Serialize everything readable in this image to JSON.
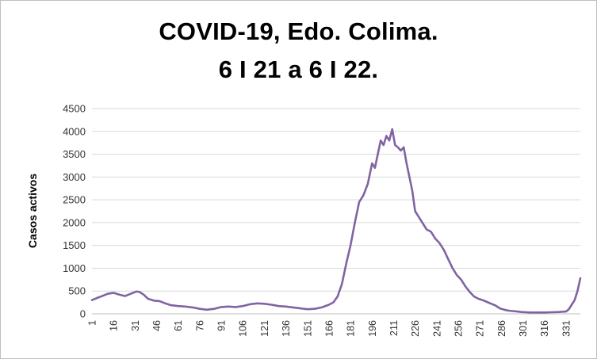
{
  "chart_data": {
    "type": "line",
    "title_line1": "COVID-19, Edo. Colima.",
    "title_line2": "6 I 21 a 6 I 22.",
    "ylabel": "Casos activos",
    "xlabel": "",
    "ylim": [
      0,
      4500
    ],
    "xlim": [
      1,
      341
    ],
    "yticks": [
      0,
      500,
      1000,
      1500,
      2000,
      2500,
      3000,
      3500,
      4000,
      4500
    ],
    "xticks": [
      1,
      16,
      31,
      46,
      61,
      76,
      91,
      106,
      121,
      136,
      151,
      166,
      181,
      196,
      211,
      226,
      241,
      256,
      271,
      286,
      301,
      316,
      331
    ],
    "grid": true,
    "legend": "none",
    "color": "#8064a2",
    "series": [
      {
        "x": [
          1,
          4,
          8,
          12,
          16,
          20,
          24,
          28,
          32,
          34,
          37,
          40,
          44,
          48,
          52,
          56,
          61,
          66,
          71,
          76,
          81,
          86,
          91,
          96,
          101,
          106,
          111,
          116,
          121,
          126,
          131,
          136,
          141,
          146,
          151,
          156,
          161,
          166,
          169,
          172,
          175,
          178,
          181,
          184,
          187,
          190,
          193,
          196,
          198,
          200,
          202,
          204,
          206,
          208,
          210,
          212,
          214,
          216,
          218,
          220,
          222,
          224,
          226,
          228,
          231,
          234,
          237,
          240,
          243,
          246,
          249,
          252,
          255,
          258,
          261,
          264,
          267,
          270,
          273,
          276,
          279,
          282,
          285,
          288,
          291,
          294,
          297,
          300,
          303,
          306,
          311,
          316,
          321,
          326,
          331,
          333,
          335,
          337,
          339,
          341
        ],
        "y": [
          300,
          340,
          390,
          440,
          460,
          420,
          390,
          440,
          490,
          480,
          420,
          330,
          290,
          280,
          230,
          190,
          170,
          160,
          140,
          110,
          90,
          110,
          150,
          160,
          150,
          170,
          210,
          230,
          220,
          200,
          170,
          160,
          140,
          120,
          100,
          110,
          140,
          200,
          250,
          380,
          650,
          1100,
          1500,
          2000,
          2450,
          2600,
          2850,
          3300,
          3200,
          3500,
          3800,
          3700,
          3900,
          3800,
          4050,
          3700,
          3650,
          3580,
          3650,
          3300,
          3000,
          2700,
          2250,
          2150,
          2000,
          1850,
          1800,
          1650,
          1550,
          1400,
          1200,
          1000,
          850,
          750,
          600,
          480,
          380,
          330,
          300,
          260,
          220,
          180,
          120,
          90,
          70,
          60,
          50,
          40,
          35,
          30,
          30,
          30,
          35,
          40,
          50,
          100,
          200,
          300,
          500,
          780
        ]
      }
    ]
  }
}
